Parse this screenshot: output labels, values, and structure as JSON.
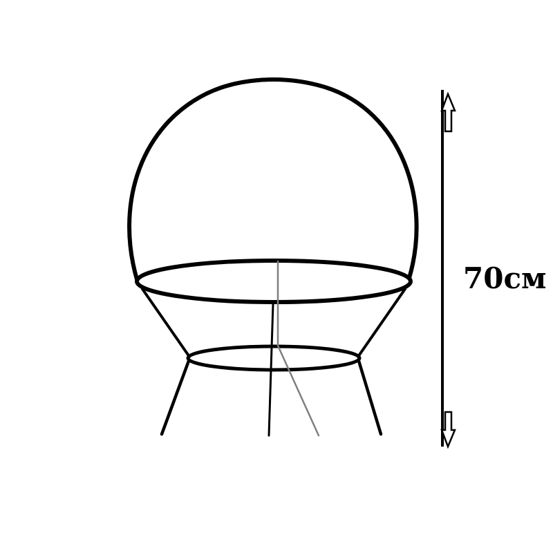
{
  "dimension": {
    "label": "70см"
  },
  "colors": {
    "ink": "#000000",
    "center_line": "#7f7f7f"
  }
}
